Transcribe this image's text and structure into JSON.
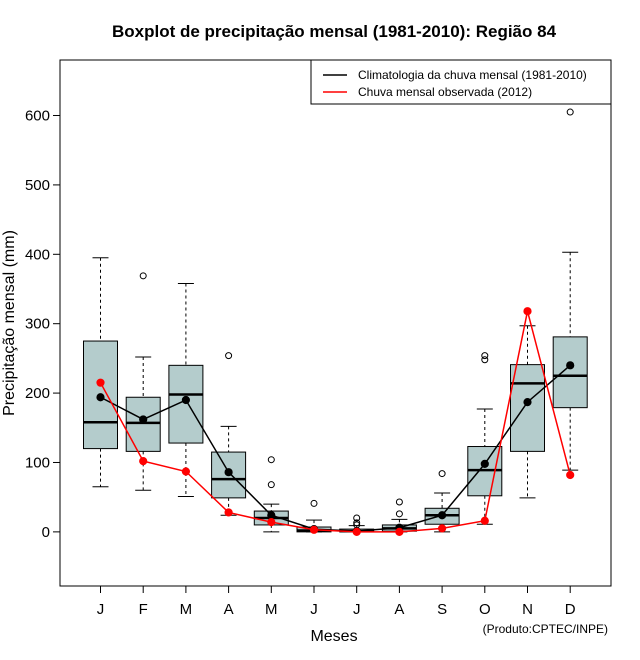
{
  "chart_data": {
    "type": "boxplot",
    "title": "Boxplot de precipitação mensal (1981-2010): Região 84",
    "xlabel": "Meses",
    "ylabel": "Precipitação mensal (mm)",
    "ylim": [
      -78,
      680
    ],
    "yticks": [
      0,
      100,
      200,
      300,
      400,
      500,
      600
    ],
    "categories": [
      "J",
      "F",
      "M",
      "A",
      "M",
      "J",
      "J",
      "A",
      "S",
      "O",
      "N",
      "D"
    ],
    "box_color": "#b4cccc",
    "boxes": [
      {
        "whisker_low": 65,
        "q1": 120,
        "median": 158,
        "q3": 275,
        "whisker_high": 395,
        "outliers": []
      },
      {
        "whisker_low": 60,
        "q1": 116,
        "median": 157,
        "q3": 194,
        "whisker_high": 252,
        "outliers": [
          369
        ]
      },
      {
        "whisker_low": 51,
        "q1": 128,
        "median": 198,
        "q3": 240,
        "whisker_high": 358,
        "outliers": []
      },
      {
        "whisker_low": 24,
        "q1": 49,
        "median": 76,
        "q3": 115,
        "whisker_high": 152,
        "outliers": [
          254
        ]
      },
      {
        "whisker_low": 0,
        "q1": 10,
        "median": 20,
        "q3": 30,
        "whisker_high": 40,
        "outliers": [
          104,
          68
        ]
      },
      {
        "whisker_low": 0,
        "q1": 0,
        "median": 2,
        "q3": 7,
        "whisker_high": 17,
        "outliers": [
          41
        ]
      },
      {
        "whisker_low": 0,
        "q1": 0,
        "median": 1,
        "q3": 4,
        "whisker_high": 9,
        "outliers": [
          20,
          13,
          10
        ]
      },
      {
        "whisker_low": 0,
        "q1": 1,
        "median": 5,
        "q3": 10,
        "whisker_high": 18,
        "outliers": [
          43,
          26
        ]
      },
      {
        "whisker_low": 0,
        "q1": 11,
        "median": 24,
        "q3": 34,
        "whisker_high": 56,
        "outliers": [
          84
        ]
      },
      {
        "whisker_low": 11,
        "q1": 52,
        "median": 89,
        "q3": 123,
        "whisker_high": 177,
        "outliers": [
          254,
          248
        ]
      },
      {
        "whisker_low": 49,
        "q1": 116,
        "median": 214,
        "q3": 241,
        "whisker_high": 297,
        "outliers": []
      },
      {
        "whisker_low": 89,
        "q1": 179,
        "median": 225,
        "q3": 281,
        "whisker_high": 403,
        "outliers": [
          605
        ]
      }
    ],
    "series": [
      {
        "name": "Climatologia da chuva mensal (1981-2010)",
        "color": "#000000",
        "values": [
          194,
          162,
          190,
          86,
          24,
          4,
          1,
          6,
          24,
          98,
          187,
          240
        ]
      },
      {
        "name": "Chuva mensal observada (2012)",
        "color": "#ff0000",
        "values": [
          215,
          102,
          87,
          28,
          14,
          3,
          0,
          0,
          5,
          16,
          318,
          82
        ]
      }
    ],
    "legend_position": "top-right",
    "credit": "(Produto:CPTEC/INPE)"
  }
}
